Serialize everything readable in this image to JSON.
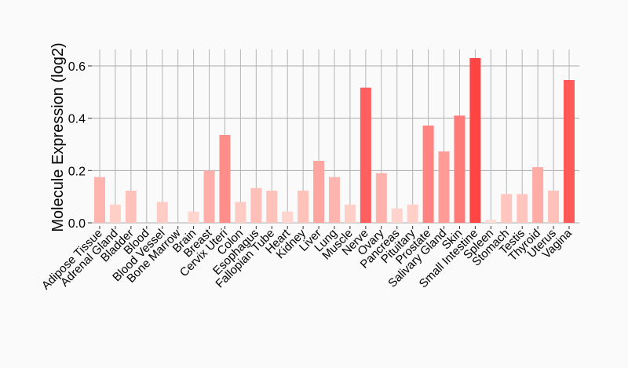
{
  "chart_data": {
    "type": "bar",
    "title": "",
    "xlabel": "",
    "ylabel": "Molecule Expression (log2)",
    "ylim": [
      0,
      0.66
    ],
    "yticks": [
      0.0,
      0.2,
      0.4,
      0.6
    ],
    "ytick_labels": [
      "0.0",
      "0.2",
      "0.4",
      "0.6"
    ],
    "grid": true,
    "categories": [
      "Adipose Tissue",
      "Adrenal Gland",
      "Bladder",
      "Blood",
      "Blood Vessel",
      "Bone Marrow",
      "Brain",
      "Breast",
      "Cervix Uteri",
      "Colon",
      "Esophagus",
      "Fallopian Tube",
      "Heart",
      "Kidney",
      "Liver",
      "Lung",
      "Muscle",
      "Nerve",
      "Ovary",
      "Pancreas",
      "Pituitary",
      "Prostate",
      "Salivary Gland",
      "Skin",
      "Small Intestine",
      "Spleen",
      "Stomach",
      "Testis",
      "Thyroid",
      "Uterus",
      "Vagina"
    ],
    "values": [
      0.175,
      0.07,
      0.123,
      0,
      0.08,
      0,
      0.043,
      0.2,
      0.336,
      0.08,
      0.133,
      0.123,
      0.043,
      0.123,
      0.237,
      0.175,
      0.07,
      0.517,
      0.19,
      0.055,
      0.07,
      0.372,
      0.273,
      0.41,
      0.63,
      0.012,
      0.11,
      0.11,
      0.213,
      0.123,
      0.546
    ],
    "color_low": "#ffe0d8",
    "color_high": "#ff4444"
  }
}
